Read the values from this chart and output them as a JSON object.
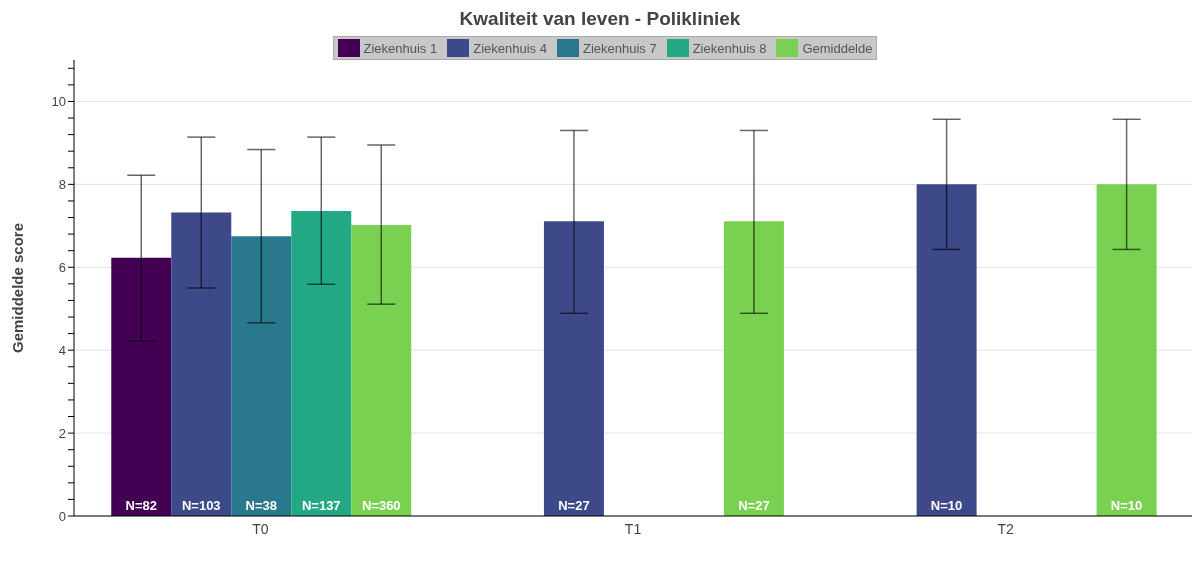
{
  "chart_data": {
    "type": "bar",
    "title": "Kwaliteit van leven - Polikliniek",
    "ylabel": "Gemiddelde score",
    "categories": [
      "T0",
      "T1",
      "T2"
    ],
    "series": [
      {
        "name": "Ziekenhuis 1",
        "color": "#440154",
        "values": [
          6.23,
          null,
          null
        ],
        "errors": [
          [
            4.22,
            8.22
          ],
          null,
          null
        ]
      },
      {
        "name": "Ziekenhuis 4",
        "color": "#3e4989",
        "values": [
          7.32,
          7.11,
          8.0
        ],
        "errors": [
          [
            5.5,
            9.14
          ],
          [
            4.89,
            9.3
          ],
          [
            6.43,
            9.57
          ]
        ]
      },
      {
        "name": "Ziekenhuis 7",
        "color": "#2a788e",
        "values": [
          6.75,
          null,
          null
        ],
        "errors": [
          [
            4.66,
            8.84
          ],
          null,
          null
        ]
      },
      {
        "name": "Ziekenhuis 8",
        "color": "#22a884",
        "values": [
          7.36,
          null,
          null
        ],
        "errors": [
          [
            5.59,
            9.14
          ],
          null,
          null
        ]
      },
      {
        "name": "Gemiddelde",
        "color": "#7ad151",
        "values": [
          7.02,
          7.11,
          8.0
        ],
        "errors": [
          [
            5.11,
            8.95
          ],
          [
            4.89,
            9.3
          ],
          [
            6.43,
            9.57
          ]
        ]
      }
    ],
    "annotations": [
      "N=82",
      "N=103",
      "N=38",
      "N=137",
      "N=360",
      "N=27",
      "N=27",
      "N=10",
      "N=10"
    ],
    "ylim": [
      0,
      11
    ],
    "yticks": [
      0,
      {
        "value": 0.4,
        "label": null
      },
      {
        "value": 0.8,
        "label": null
      },
      {
        "value": 1.2,
        "label": null
      },
      {
        "value": 1.6,
        "label": null
      },
      2,
      {
        "value": 2.4,
        "label": null
      },
      {
        "value": 2.8,
        "label": null
      },
      {
        "value": 3.2,
        "label": null
      },
      {
        "value": 3.6,
        "label": null
      },
      4,
      {
        "value": 4.4,
        "label": null
      },
      {
        "value": 4.8,
        "label": null
      },
      {
        "value": 5.2,
        "label": null
      },
      {
        "value": 5.6,
        "label": null
      },
      6,
      {
        "value": 6.4,
        "label": null
      },
      {
        "value": 6.8,
        "label": null
      },
      {
        "value": 7.2,
        "label": null
      },
      {
        "value": 7.6,
        "label": null
      },
      8,
      {
        "value": 8.4,
        "label": null
      },
      {
        "value": 8.8,
        "label": null
      },
      {
        "value": 9.2,
        "label": null
      },
      {
        "value": 9.6,
        "label": null
      },
      10,
      {
        "value": 10.4,
        "label": null
      },
      {
        "value": 10.8,
        "label": null
      }
    ],
    "grid": "y",
    "legend": "top"
  }
}
